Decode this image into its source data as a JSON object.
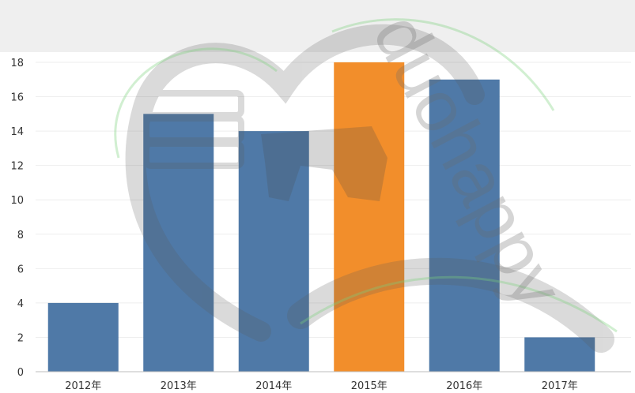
{
  "chart_data": {
    "type": "bar",
    "categories": [
      "2012年",
      "2013年",
      "2014年",
      "2015年",
      "2016年",
      "2017年"
    ],
    "values": [
      4,
      15,
      14,
      18,
      17,
      2
    ],
    "highlight_index": 3,
    "ylim": [
      0,
      18
    ],
    "yticks": [
      0,
      2,
      4,
      6,
      8,
      10,
      12,
      14,
      16,
      18
    ],
    "grid": true,
    "colors": {
      "bar": "#4f79a7",
      "highlight": "#f28e2b",
      "axis": "#bdbdbd",
      "grid": "#eeeeee",
      "header_band": "#efefef"
    }
  },
  "watermark": {
    "text": "duohappy"
  }
}
